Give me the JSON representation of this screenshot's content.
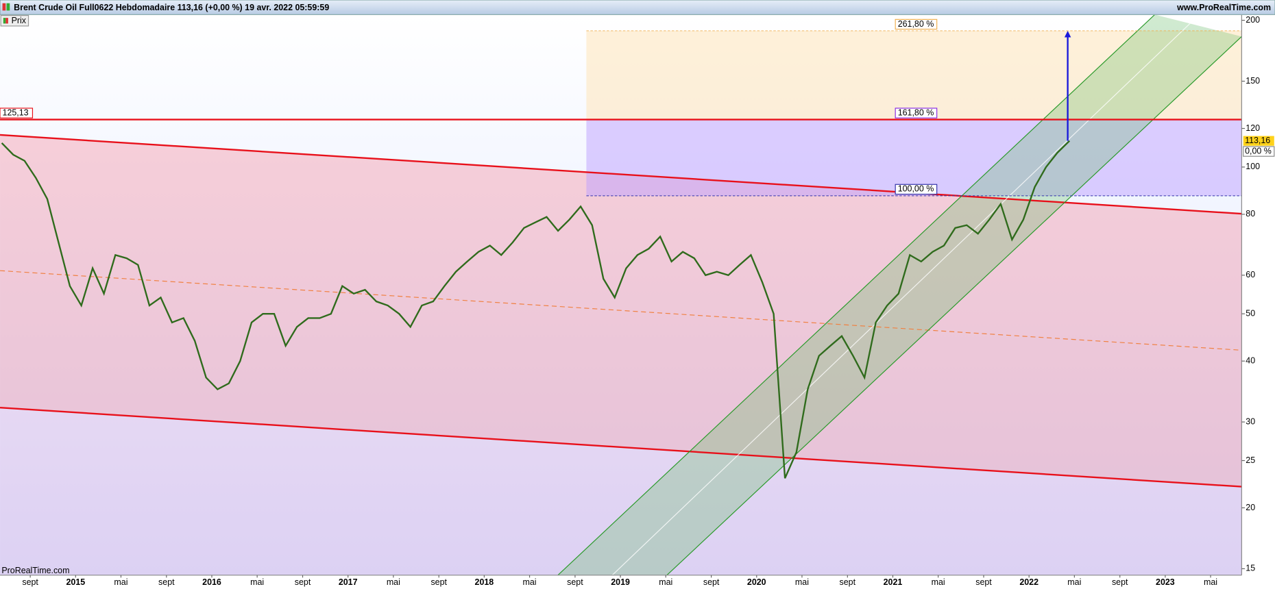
{
  "chart_data": {
    "type": "line",
    "title": "Brent Crude Oil Full0622 Hebdomadaire 113,16 (+0,00 %) 19 avr. 2022 05:59:59",
    "source": "www.ProRealTime.com",
    "watermark": "ProRealTime.com",
    "log_scale": true,
    "xlim": [
      2014.445,
      2023.561
    ],
    "ylim": [
      14.55,
      205.4
    ],
    "xticks": [
      {
        "value": 2014.667,
        "label": "sept"
      },
      2015,
      {
        "value": 2015.333,
        "label": "mai"
      },
      {
        "value": 2015.667,
        "label": "sept"
      },
      2016,
      {
        "value": 2016.333,
        "label": "mai"
      },
      {
        "value": 2016.667,
        "label": "sept"
      },
      2017,
      {
        "value": 2017.333,
        "label": "mai"
      },
      {
        "value": 2017.667,
        "label": "sept"
      },
      2018,
      {
        "value": 2018.333,
        "label": "mai"
      },
      {
        "value": 2018.667,
        "label": "sept"
      },
      2019,
      {
        "value": 2019.333,
        "label": "mai"
      },
      {
        "value": 2019.667,
        "label": "sept"
      },
      2020,
      {
        "value": 2020.333,
        "label": "mai"
      },
      {
        "value": 2020.667,
        "label": "sept"
      },
      2021,
      {
        "value": 2021.333,
        "label": "mai"
      },
      {
        "value": 2021.667,
        "label": "sept"
      },
      2022,
      {
        "value": 2022.333,
        "label": "mai"
      },
      {
        "value": 2022.667,
        "label": "sept"
      },
      2023,
      {
        "value": 2023.333,
        "label": "mai"
      }
    ],
    "yticks": [
      15,
      20,
      25,
      30,
      40,
      50,
      60,
      80,
      100,
      120,
      150,
      200
    ],
    "series": [
      {
        "name": "Prix",
        "color": "#2f6b1c",
        "x": [
          2014.458,
          2014.542,
          2014.625,
          2014.708,
          2014.792,
          2014.875,
          2014.958,
          2015.042,
          2015.125,
          2015.208,
          2015.292,
          2015.375,
          2015.458,
          2015.542,
          2015.625,
          2015.708,
          2015.792,
          2015.875,
          2015.958,
          2016.042,
          2016.125,
          2016.208,
          2016.292,
          2016.375,
          2016.458,
          2016.542,
          2016.625,
          2016.708,
          2016.792,
          2016.875,
          2016.958,
          2017.042,
          2017.125,
          2017.208,
          2017.292,
          2017.375,
          2017.458,
          2017.542,
          2017.625,
          2017.708,
          2017.792,
          2017.875,
          2017.958,
          2018.042,
          2018.125,
          2018.208,
          2018.292,
          2018.375,
          2018.458,
          2018.542,
          2018.625,
          2018.708,
          2018.792,
          2018.875,
          2018.958,
          2019.042,
          2019.125,
          2019.208,
          2019.292,
          2019.375,
          2019.458,
          2019.542,
          2019.625,
          2019.708,
          2019.792,
          2019.875,
          2019.958,
          2020.042,
          2020.125,
          2020.208,
          2020.292,
          2020.375,
          2020.458,
          2020.542,
          2020.625,
          2020.708,
          2020.792,
          2020.875,
          2020.958,
          2021.042,
          2021.125,
          2021.208,
          2021.292,
          2021.375,
          2021.458,
          2021.542,
          2021.625,
          2021.708,
          2021.792,
          2021.875,
          2021.958,
          2022.042,
          2022.125,
          2022.208,
          2022.297
        ],
        "values": [
          112,
          106,
          103,
          95,
          86,
          70,
          57,
          52,
          62,
          55,
          66,
          65,
          63,
          52,
          54,
          48,
          49,
          44,
          37,
          35,
          36,
          40,
          48,
          50,
          50,
          43,
          47,
          49,
          49,
          50,
          57,
          55,
          56,
          53,
          52,
          50,
          47,
          52,
          53,
          57,
          61,
          64,
          67,
          69,
          66,
          70,
          75,
          77,
          79,
          74,
          78,
          83,
          76,
          59,
          54,
          62,
          66,
          68,
          72,
          64,
          67,
          65,
          60,
          61,
          60,
          63,
          66,
          58,
          50,
          23,
          26,
          35,
          41,
          43,
          45,
          41,
          37,
          48,
          52,
          55,
          66,
          64,
          67,
          69,
          75,
          76,
          73,
          78,
          84,
          71,
          78,
          91,
          100,
          107,
          113.16
        ]
      }
    ],
    "last_price": {
      "value": 113.16,
      "label": "113,16"
    },
    "change_label": "0,00 %",
    "level": {
      "value": 125.13,
      "label": "125,13",
      "color": "#e8101a"
    },
    "fib": {
      "start": 2018.75,
      "levels": [
        {
          "value": 87.3,
          "label": "100,00 %",
          "color": "#3333aa"
        },
        {
          "value": 125.13,
          "label": "161,80 %",
          "color": "#8a2be2"
        },
        {
          "value": 190.3,
          "label": "261,80 %",
          "color": "#f0b050"
        }
      ]
    },
    "channels": [
      {
        "x": [
          2014.445,
          2023.561
        ],
        "y": [
          116.4,
          80.2
        ],
        "color": "#e8101a"
      },
      {
        "x": [
          2014.445,
          2023.561
        ],
        "y": [
          32.1,
          22.1
        ],
        "color": "#e8101a"
      },
      {
        "x": [
          2014.445,
          2023.561
        ],
        "y": [
          61.3,
          42.1
        ],
        "color": "#f08040",
        "dashed": true
      },
      {
        "x": [
          2018.541,
          2022.923
        ],
        "y": [
          14.55,
          205.4
        ],
        "color": "#2a9a2a"
      },
      {
        "x": [
          2019.341,
          2023.561
        ],
        "y": [
          14.55,
          185.2
        ],
        "color": "#2a9a2a"
      },
      {
        "x": [
          2018.94,
          2023.25
        ],
        "y": [
          14.55,
          205.4
        ],
        "color": "#ffffff"
      }
    ],
    "arrow": {
      "x": 2022.284,
      "to": 190.3,
      "color": "#1a1adb"
    }
  }
}
